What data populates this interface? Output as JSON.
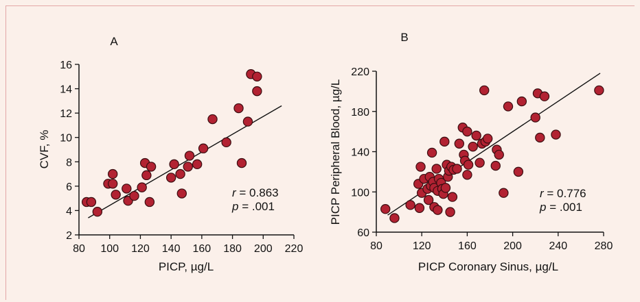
{
  "chart_data": [
    {
      "type": "scatter",
      "panel_label": "A",
      "xlabel": "PICP, µg/L",
      "ylabel": "CVF, %",
      "xlim": [
        80,
        220
      ],
      "ylim": [
        2,
        16
      ],
      "xticks": [
        "80",
        "100",
        "120",
        "140",
        "160",
        "180",
        "200",
        "220"
      ],
      "yticks": [
        "2",
        "4",
        "6",
        "8",
        "10",
        "12",
        "14",
        "16"
      ],
      "stats": {
        "r_label": "r",
        "r_value": "= 0.863",
        "p_label": "p",
        "p_value": "=  .001"
      },
      "fit": [
        [
          86,
          3.4
        ],
        [
          212,
          12.6
        ]
      ],
      "points": [
        [
          85,
          4.7
        ],
        [
          88,
          4.7
        ],
        [
          92,
          3.9
        ],
        [
          99,
          6.2
        ],
        [
          102,
          7.0
        ],
        [
          102,
          6.2
        ],
        [
          104,
          5.3
        ],
        [
          111,
          5.8
        ],
        [
          112,
          4.8
        ],
        [
          116,
          5.2
        ],
        [
          121,
          5.9
        ],
        [
          123,
          7.9
        ],
        [
          124,
          6.9
        ],
        [
          126,
          4.7
        ],
        [
          127,
          7.6
        ],
        [
          140,
          6.7
        ],
        [
          142,
          7.8
        ],
        [
          146,
          7.0
        ],
        [
          147,
          5.4
        ],
        [
          151,
          7.6
        ],
        [
          152,
          8.5
        ],
        [
          157,
          7.8
        ],
        [
          161,
          9.1
        ],
        [
          167,
          11.5
        ],
        [
          176,
          9.6
        ],
        [
          184,
          12.4
        ],
        [
          186,
          7.9
        ],
        [
          190,
          11.3
        ],
        [
          192,
          15.2
        ],
        [
          196,
          15.0
        ],
        [
          196,
          13.8
        ]
      ]
    },
    {
      "type": "scatter",
      "panel_label": "B",
      "xlabel": "PICP Coronary Sinus, µg/L",
      "ylabel": "PICP Peripheral Blood,  µg/L",
      "xlim": [
        80,
        280
      ],
      "ylim": [
        60,
        220
      ],
      "xticks": [
        "80",
        "120",
        "160",
        "200",
        "240",
        "280"
      ],
      "yticks": [
        "60",
        "100",
        "140",
        "180",
        "220"
      ],
      "stats": {
        "r_label": "r",
        "r_value": "= 0.776",
        "p_label": "p",
        "p_value": "=  .001"
      },
      "fit": [
        [
          90,
          77
        ],
        [
          277,
          218
        ]
      ],
      "points": [
        [
          88,
          83
        ],
        [
          96,
          74
        ],
        [
          110,
          87
        ],
        [
          117,
          108
        ],
        [
          118,
          84
        ],
        [
          119,
          125
        ],
        [
          120,
          99
        ],
        [
          122,
          113
        ],
        [
          125,
          103
        ],
        [
          126,
          92
        ],
        [
          127,
          115
        ],
        [
          128,
          106
        ],
        [
          129,
          139
        ],
        [
          130,
          110
        ],
        [
          131,
          85
        ],
        [
          131,
          104
        ],
        [
          133,
          123
        ],
        [
          134,
          82
        ],
        [
          134,
          101
        ],
        [
          135,
          113
        ],
        [
          137,
          109
        ],
        [
          138,
          103
        ],
        [
          139,
          98
        ],
        [
          140,
          150
        ],
        [
          141,
          104
        ],
        [
          142,
          127
        ],
        [
          143,
          115
        ],
        [
          144,
          121
        ],
        [
          145,
          80
        ],
        [
          146,
          125
        ],
        [
          147,
          95
        ],
        [
          148,
          122
        ],
        [
          151,
          123
        ],
        [
          153,
          148
        ],
        [
          156,
          164
        ],
        [
          157,
          137
        ],
        [
          158,
          131
        ],
        [
          160,
          117
        ],
        [
          160,
          160
        ],
        [
          161,
          127
        ],
        [
          165,
          145
        ],
        [
          168,
          156
        ],
        [
          171,
          129
        ],
        [
          173,
          148
        ],
        [
          175,
          201
        ],
        [
          176,
          150
        ],
        [
          178,
          153
        ],
        [
          185,
          126
        ],
        [
          186,
          142
        ],
        [
          188,
          137
        ],
        [
          192,
          99
        ],
        [
          196,
          185
        ],
        [
          205,
          120
        ],
        [
          208,
          190
        ],
        [
          220,
          174
        ],
        [
          222,
          198
        ],
        [
          224,
          154
        ],
        [
          228,
          195
        ],
        [
          238,
          157
        ],
        [
          276,
          201
        ]
      ]
    }
  ]
}
